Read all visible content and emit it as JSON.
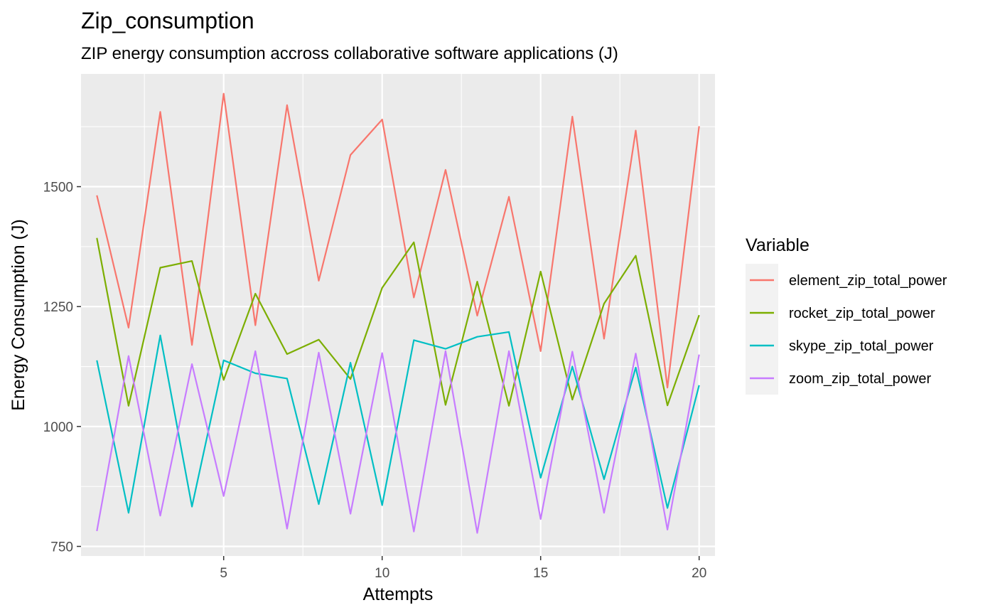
{
  "chart_data": {
    "type": "line",
    "title": "Zip_consumption",
    "subtitle": "ZIP energy consumption accross collaborative software applications (J)",
    "xlabel": "Attempts",
    "ylabel": "Energy Consumption (J)",
    "xlim": [
      0.5,
      20.5
    ],
    "ylim": [
      730,
      1735
    ],
    "x_ticks": [
      5,
      10,
      15,
      20
    ],
    "x_minor": [
      2.5,
      7.5,
      12.5,
      17.5
    ],
    "y_ticks": [
      750,
      1000,
      1250,
      1500
    ],
    "y_minor": [
      875,
      1125,
      1375,
      1625
    ],
    "grid": true,
    "legend": {
      "title": "Variable",
      "position": "right"
    },
    "x": [
      1,
      2,
      3,
      4,
      5,
      6,
      7,
      8,
      9,
      10,
      11,
      12,
      13,
      14,
      15,
      16,
      17,
      18,
      19,
      20
    ],
    "series": [
      {
        "name": "element_zip_total_power",
        "color": "#F8766D",
        "values": [
          1482,
          1206,
          1656,
          1170,
          1694,
          1211,
          1670,
          1304,
          1566,
          1640,
          1269,
          1535,
          1231,
          1479,
          1157,
          1646,
          1183,
          1617,
          1081,
          1626
        ]
      },
      {
        "name": "rocket_zip_total_power",
        "color": "#7CAE00",
        "values": [
          1393,
          1043,
          1331,
          1345,
          1097,
          1277,
          1151,
          1181,
          1099,
          1289,
          1384,
          1045,
          1302,
          1043,
          1323,
          1056,
          1256,
          1356,
          1044,
          1232
        ]
      },
      {
        "name": "skype_zip_total_power",
        "color": "#00BFC4",
        "values": [
          1138,
          820,
          1190,
          833,
          1138,
          1111,
          1100,
          838,
          1133,
          836,
          1180,
          1162,
          1187,
          1197,
          893,
          1125,
          890,
          1123,
          830,
          1086
        ]
      },
      {
        "name": "zoom_zip_total_power",
        "color": "#C77CFF",
        "values": [
          782,
          1147,
          814,
          1130,
          855,
          1157,
          787,
          1154,
          818,
          1153,
          781,
          1157,
          778,
          1157,
          807,
          1156,
          820,
          1152,
          785,
          1150
        ]
      }
    ]
  }
}
